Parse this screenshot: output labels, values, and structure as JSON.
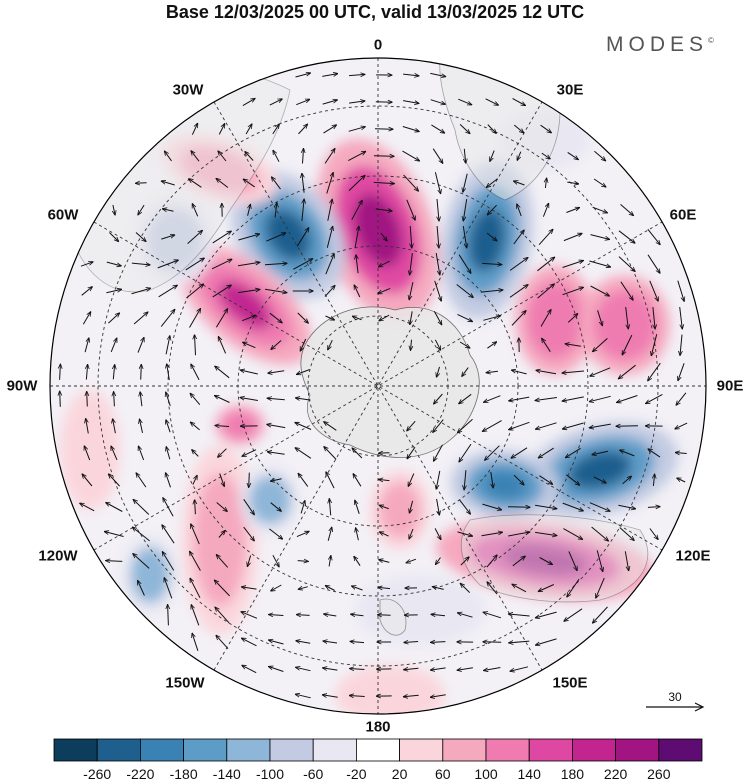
{
  "header": {
    "title": "Base 12/03/2025 00 UTC, valid 13/03/2025 12 UTC",
    "brand": "MODES",
    "brand_mark": "©"
  },
  "map": {
    "projection": "south-polar-stereographic",
    "longitude_labels": {
      "top": "0",
      "top_right": "30E",
      "upper_right": "60E",
      "right": "90E",
      "lower_right": "120E",
      "bottom_right": "150E",
      "bottom": "180",
      "bottom_left": "150W",
      "lower_left": "120W",
      "left": "90W",
      "upper_left": "60W",
      "top_left": "30W"
    },
    "colors": {
      "land": "#e8e8e8",
      "coast": "#555555",
      "grid": "#333333",
      "vector": "#111111"
    }
  },
  "reference_vector": {
    "value": "30"
  },
  "colorbar": {
    "colors": [
      "#0c3d5c",
      "#1f5f8e",
      "#3b82b4",
      "#5e9cc8",
      "#8eb6d8",
      "#c2cbe2",
      "#e8e7f2",
      "#ffffff",
      "#fad6dc",
      "#f5a9bf",
      "#ef7bb1",
      "#df48a2",
      "#c22590",
      "#a11482",
      "#5e0b72"
    ],
    "tick_labels": [
      "-260",
      "-220",
      "-180",
      "-140",
      "-100",
      "-60",
      "-20",
      "20",
      "60",
      "100",
      "140",
      "180",
      "220",
      "260"
    ]
  }
}
